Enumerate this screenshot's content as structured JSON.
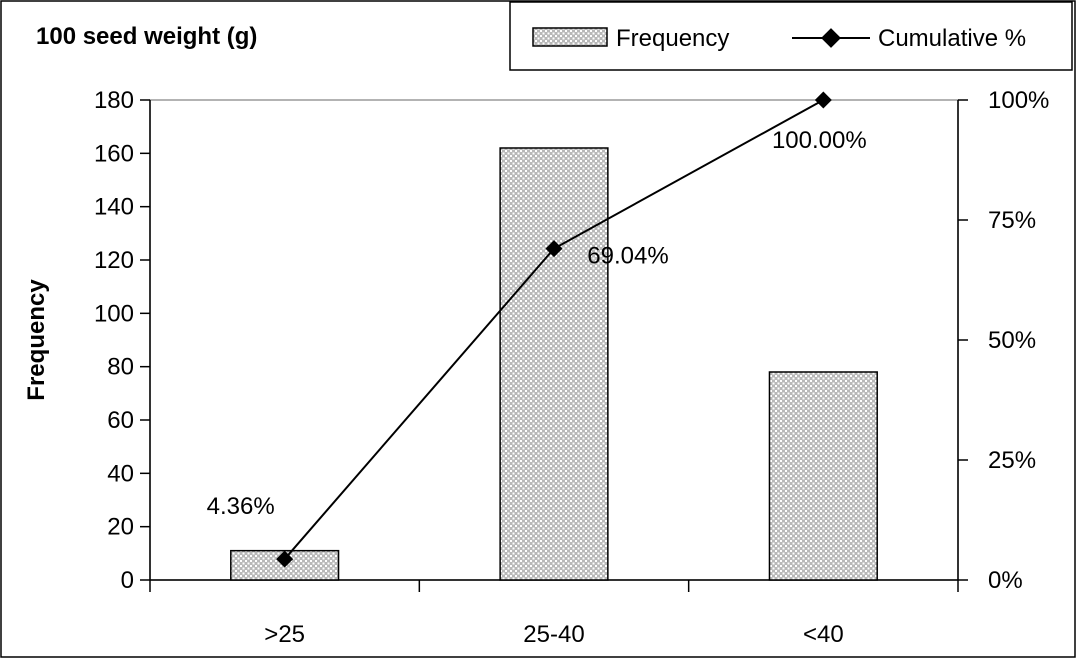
{
  "chart_data": {
    "type": "bar",
    "title": "100 seed weight (g)",
    "ylabel": "Frequency",
    "xlabel": "",
    "categories": [
      ">25",
      "25-40",
      "<40"
    ],
    "ylim": [
      0,
      180
    ],
    "yticks": [
      "0",
      "20",
      "40",
      "60",
      "80",
      "100",
      "120",
      "140",
      "160",
      "180"
    ],
    "y2lim": [
      0,
      100
    ],
    "y2ticks": [
      "0%",
      "25%",
      "50%",
      "75%",
      "100%"
    ],
    "series": [
      {
        "name": "Frequency",
        "type": "bar",
        "axis": "left",
        "values": [
          11,
          162,
          78
        ]
      },
      {
        "name": "Cumulative %",
        "type": "line",
        "axis": "right",
        "values": [
          4.36,
          69.04,
          100.0
        ],
        "labels": [
          "4.36%",
          "69.04%",
          "100.00%"
        ]
      }
    ],
    "legend_position": "top-right",
    "grid": false,
    "colors": {
      "bar_fill": "#bdbdbd",
      "bar_pattern": "#ffffff",
      "line": "#000000",
      "marker": "#000000"
    }
  }
}
